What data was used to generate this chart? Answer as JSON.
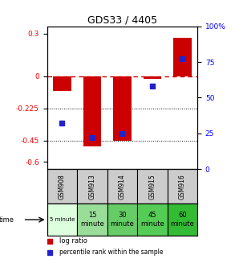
{
  "title": "GDS33 / 4405",
  "samples": [
    "GSM908",
    "GSM913",
    "GSM914",
    "GSM915",
    "GSM916"
  ],
  "time_labels": [
    "5 minute",
    "15\nminute",
    "30\nminute",
    "45\nminute",
    "60\nminute"
  ],
  "log_ratio": [
    -0.1,
    -0.49,
    -0.45,
    -0.02,
    0.27
  ],
  "percentile_rank_pct": [
    32,
    22,
    25,
    58,
    77
  ],
  "left_yticks": [
    0.3,
    0,
    -0.225,
    -0.45,
    -0.6
  ],
  "left_ylabels": [
    "0.3",
    "0",
    "-0.225",
    "-0.45",
    "-0.6"
  ],
  "right_yticks_pct": [
    100,
    75,
    50,
    25,
    0
  ],
  "right_ylabels": [
    "100%",
    "75",
    "50",
    "25",
    "0"
  ],
  "ylim": [
    -0.65,
    0.35
  ],
  "bar_color": "#cc0000",
  "dot_color": "#2222cc",
  "bg_color": "#ffffff",
  "zero_line_color": "#cc0000",
  "gsm_bg": "#cccccc",
  "time_cell_colors": [
    "#ddffdd",
    "#99dd99",
    "#66cc66",
    "#55cc55",
    "#33bb33"
  ],
  "bar_width": 0.6
}
